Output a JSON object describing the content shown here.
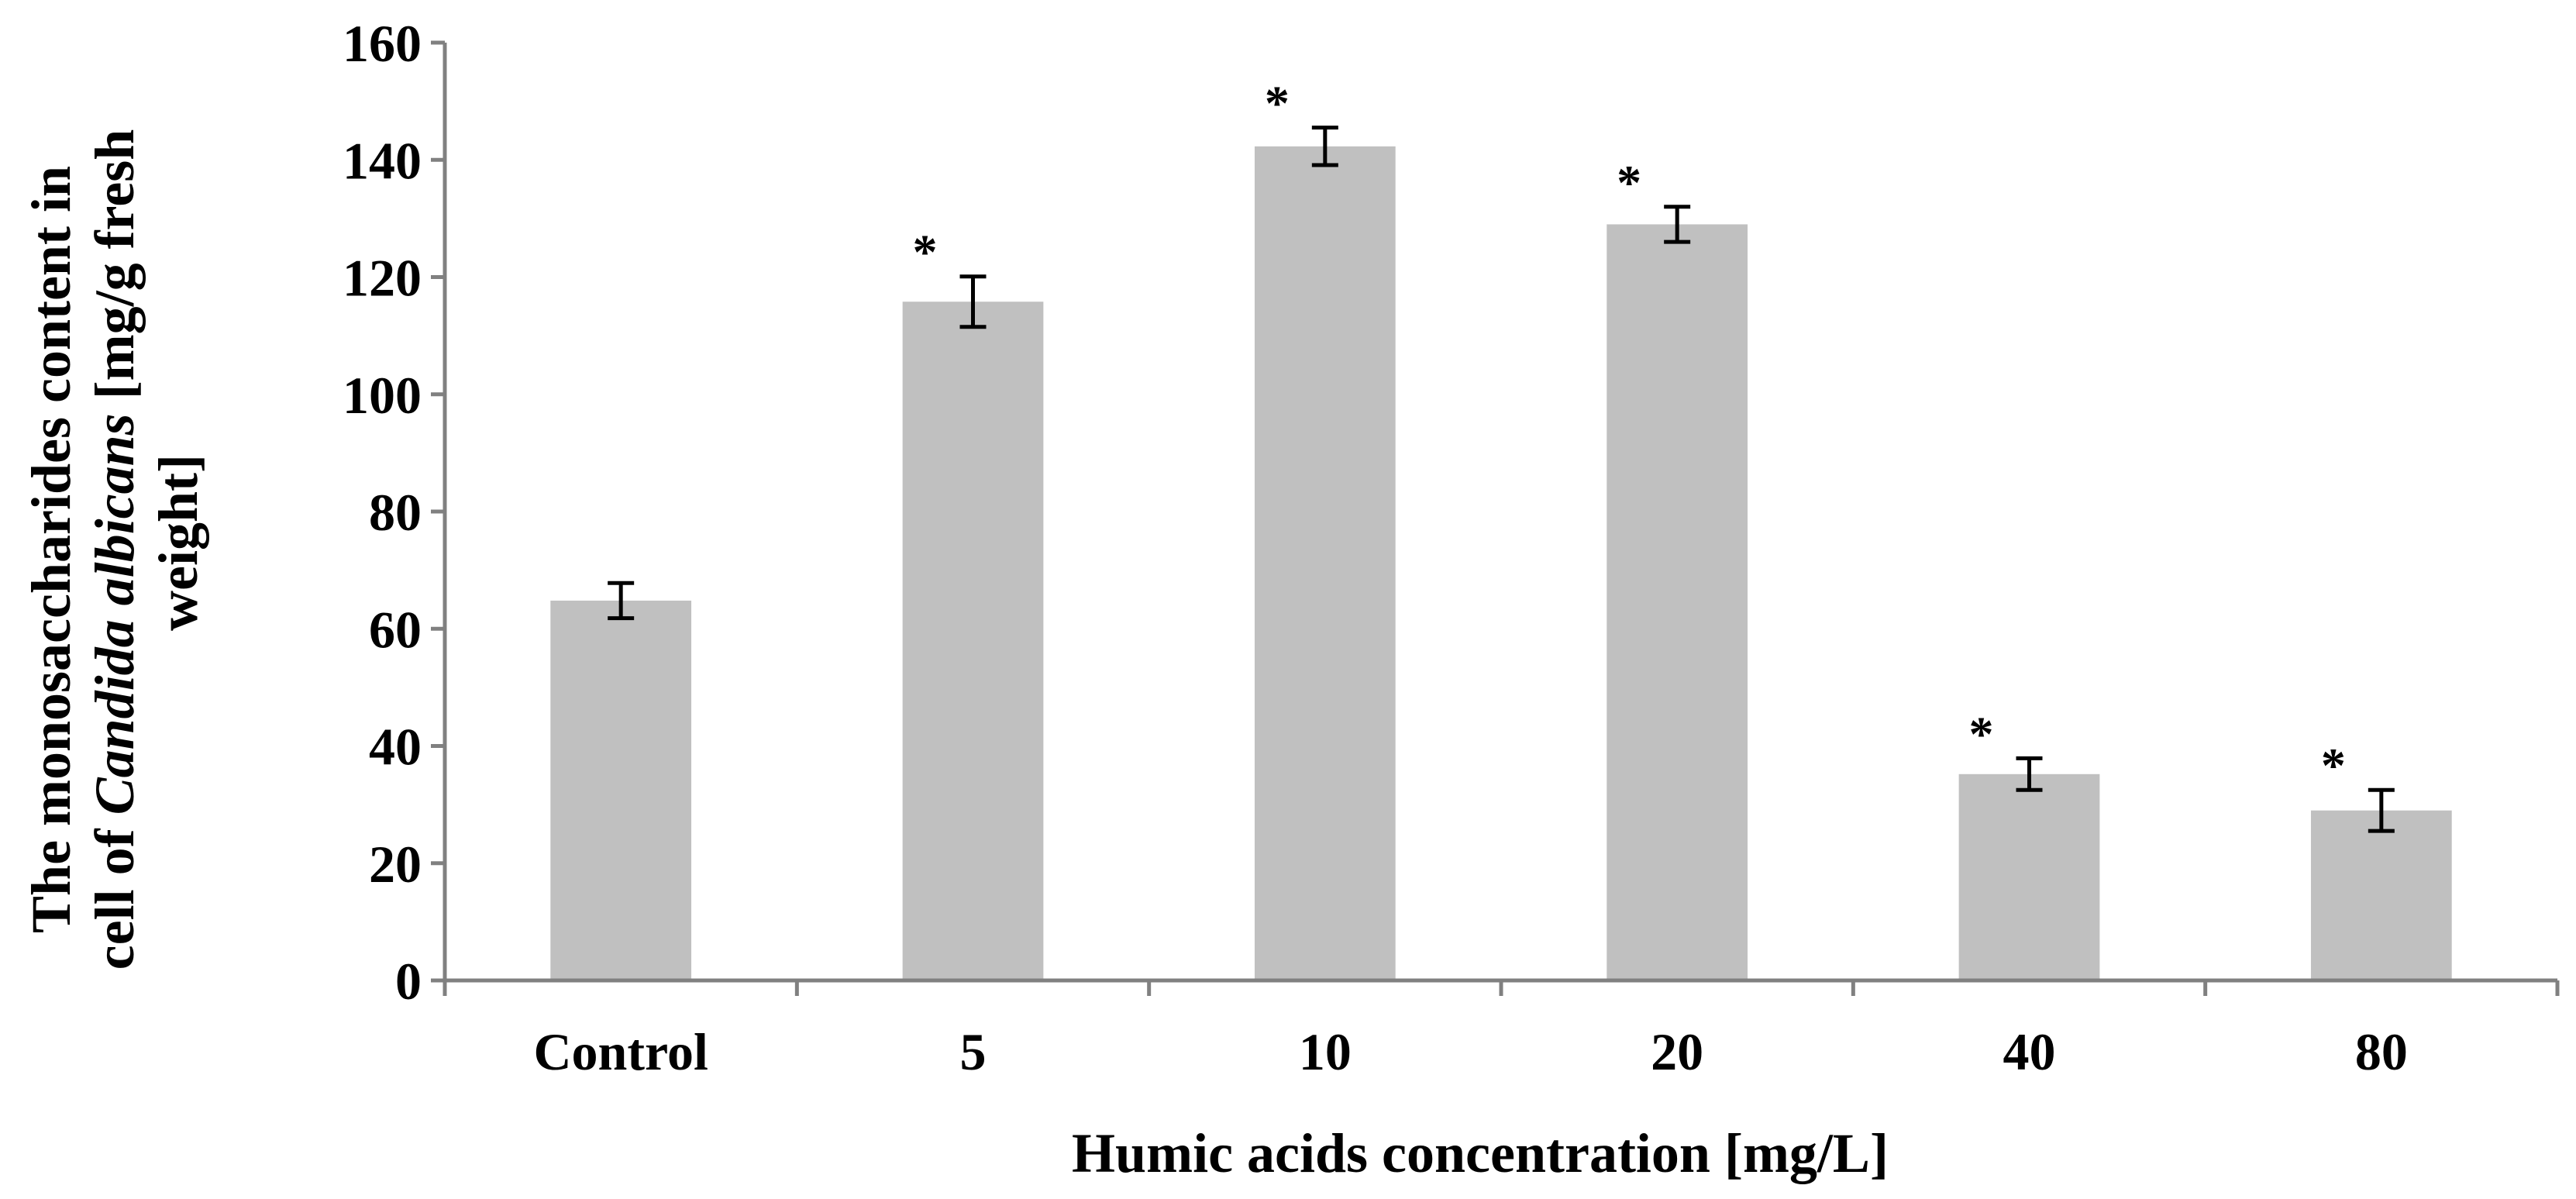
{
  "chart_data": {
    "type": "bar",
    "categories": [
      "Control",
      "5",
      "10",
      "20",
      "40",
      "80"
    ],
    "values": [
      64.8,
      115.8,
      142.3,
      129.0,
      35.2,
      29.0
    ],
    "errors": [
      3.0,
      4.3,
      3.2,
      3.0,
      2.7,
      3.5
    ],
    "significance": [
      "",
      "*",
      "*",
      "*",
      "*",
      "*"
    ],
    "xlabel": "Humic acids concentration [mg/L]",
    "ylabel": {
      "line1": "The monosaccharides content in",
      "line2_pre": "cell of ",
      "line2_italic": "Candida albicans",
      "line2_post": " [mg/g fresh",
      "line3": "weight]"
    },
    "ylim": [
      0,
      160
    ],
    "yticks": [
      "0",
      "20",
      "40",
      "60",
      "80",
      "100",
      "120",
      "140",
      "160"
    ],
    "grid": false,
    "legend": "none",
    "colors": {
      "bar": "#c0c0c0",
      "axis": "#808080",
      "error_bar": "#000000",
      "text": "#000000"
    }
  }
}
